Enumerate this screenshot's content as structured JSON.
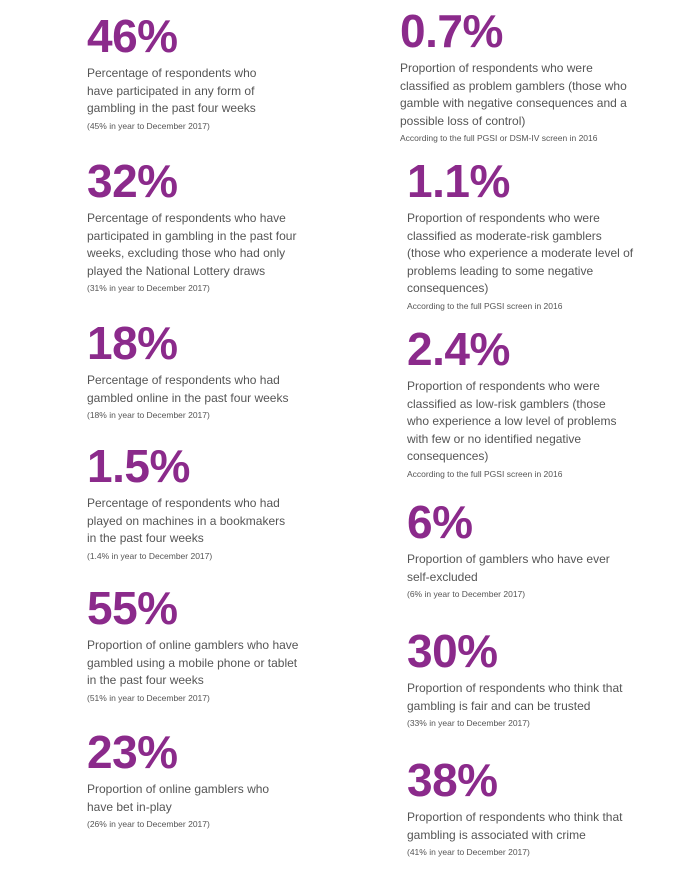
{
  "left": [
    {
      "value": "46%",
      "description": "Percentage of respondents who have participated in any form of gambling in the past four weeks",
      "note": "(45% in year to December 2017)"
    },
    {
      "value": "32%",
      "description": "Percentage of respondents who have participated in gambling in the past four weeks, excluding those who had only played the National Lottery draws",
      "note": "(31% in year to December 2017)"
    },
    {
      "value": "18%",
      "description": "Percentage of respondents who had gambled online in the past four weeks",
      "note": "(18% in year to December 2017)"
    },
    {
      "value": "1.5%",
      "description": "Percentage of respondents who had played on machines in a bookmakers in the past four weeks",
      "note": "(1.4% in year to December 2017)"
    },
    {
      "value": "55%",
      "description": "Proportion of online gamblers who have gambled using a mobile phone or tablet in the past four weeks",
      "note": "(51% in year to December 2017)"
    },
    {
      "value": "23%",
      "description": "Proportion of online gamblers who have bet in-play",
      "note": "(26% in year to December 2017)"
    }
  ],
  "right": [
    {
      "value": "0.7%",
      "description": "Proportion of respondents who were classified as problem gamblers (those who gamble with negative consequences and a possible loss of control)",
      "note": "According to the full PGSI or DSM-IV screen in 2016"
    },
    {
      "value": "1.1%",
      "description": "Proportion of respondents who were classified as moderate-risk gamblers (those who experience a moderate level of problems leading to some negative consequences)",
      "note": "According to the full PGSI screen in 2016"
    },
    {
      "value": "2.4%",
      "description": "Proportion of respondents who were classified as low-risk gamblers (those who experience a low level of problems with few or no identified negative consequences)",
      "note": "According to the full PGSI screen in 2016"
    },
    {
      "value": "6%",
      "description": "Proportion of gamblers who have ever self-excluded",
      "note": "(6% in year to December 2017)"
    },
    {
      "value": "30%",
      "description": "Proportion of respondents who think that gambling is fair and can be trusted",
      "note": "(33% in year to December 2017)"
    },
    {
      "value": "38%",
      "description": "Proportion of respondents who think that gambling is associated with crime",
      "note": "(41% in year to December 2017)"
    }
  ]
}
